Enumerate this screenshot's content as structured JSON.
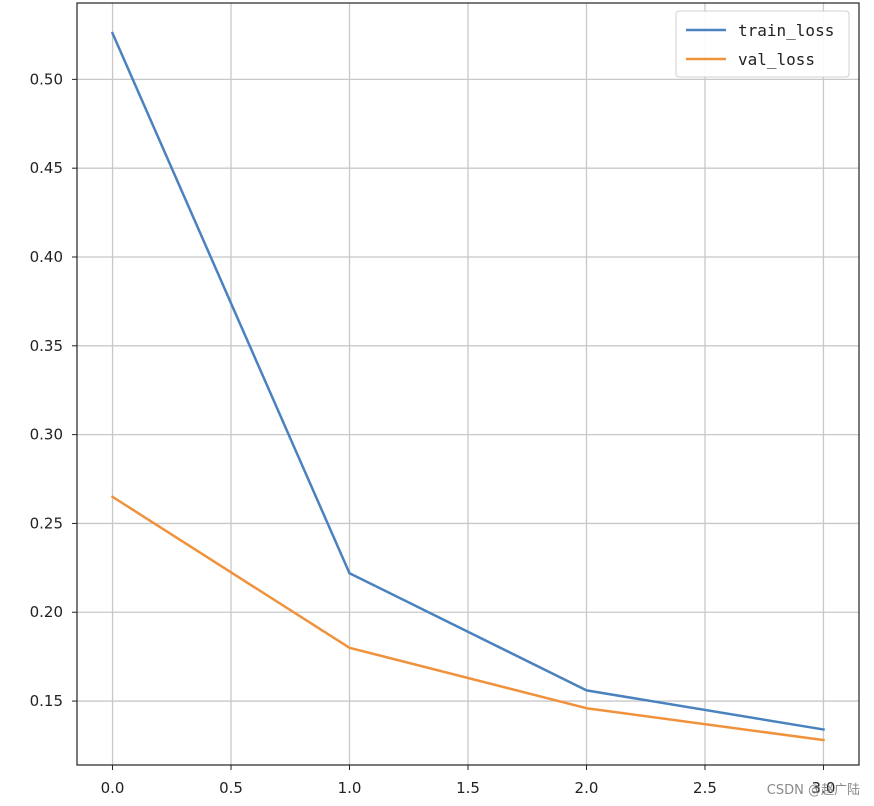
{
  "chart_data": {
    "type": "line",
    "title": "",
    "xlabel": "",
    "ylabel": "",
    "x": [
      0,
      1,
      2,
      3
    ],
    "xlim": [
      -0.15,
      3.15
    ],
    "ylim": [
      0.114,
      0.543
    ],
    "xticks": [
      0.0,
      0.5,
      1.0,
      1.5,
      2.0,
      2.5,
      3.0
    ],
    "xtick_labels": [
      "0.0",
      "0.5",
      "1.0",
      "1.5",
      "2.0",
      "2.5",
      "3.0"
    ],
    "yticks": [
      0.15,
      0.2,
      0.25,
      0.3,
      0.35,
      0.4,
      0.45,
      0.5
    ],
    "ytick_labels": [
      "0.15",
      "0.20",
      "0.25",
      "0.30",
      "0.35",
      "0.40",
      "0.45",
      "0.50"
    ],
    "grid": true,
    "legend_position": "top-right",
    "series": [
      {
        "name": "train_loss",
        "color": "#4a81bf",
        "values": [
          0.526,
          0.222,
          0.156,
          0.134
        ]
      },
      {
        "name": "val_loss",
        "color": "#f0923c",
        "values": [
          0.265,
          0.18,
          0.146,
          0.128
        ]
      }
    ]
  },
  "watermark": "CSDN @赵广陆"
}
